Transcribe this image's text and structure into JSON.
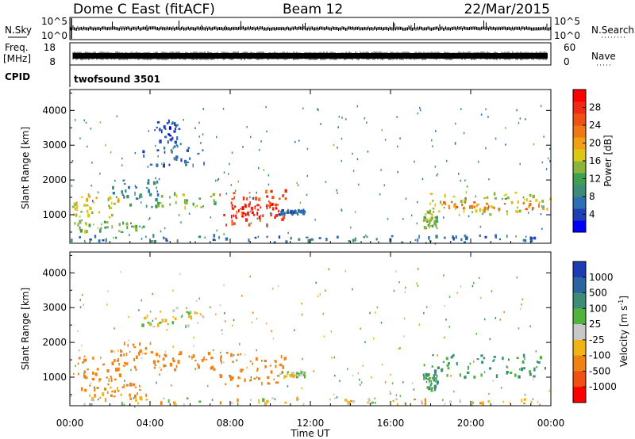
{
  "header": {
    "title": "Dome C East (fitACF)",
    "beam": "Beam 12",
    "date": "22/Mar/2015"
  },
  "top_panels": {
    "nsky_label": "N.Sky",
    "nsearch_label": "N.Search",
    "freq_label_line1": "Freq.",
    "freq_label_line2": "[MHz]",
    "nave_label": "Nave",
    "cpid_label": "CPID",
    "cpid_name": "twofsound 3501",
    "noise_left_ticks": [
      "10^5",
      "10^0"
    ],
    "noise_right_ticks": [
      "10^5",
      "10^0"
    ],
    "freq_ticks": [
      "18",
      "8"
    ],
    "nave_ticks": [
      "60",
      "0"
    ]
  },
  "colors": {
    "noise_trace": "#000000",
    "frame": "#000000"
  },
  "chart_data": [
    {
      "type": "heatmap",
      "quantity": "power",
      "xlabel": "",
      "ylabel": "Slant Range [km]",
      "x_ticks": [
        "00:00",
        "04:00",
        "08:00",
        "12:00",
        "16:00",
        "20:00",
        "00:00"
      ],
      "y_ticks": [
        1000,
        2000,
        3000,
        4000
      ],
      "ylim_km": [
        180,
        4600
      ],
      "xlim_hours": [
        0,
        24
      ],
      "colorbar": {
        "label": "Power [dB]",
        "tick_labels": [
          "28",
          "24",
          "20",
          "16",
          "12",
          "8",
          "4"
        ],
        "range": [
          0,
          32
        ],
        "colors": [
          "#0000ff",
          "#1e40b4",
          "#2d6eb4",
          "#3c8c78",
          "#3ca050",
          "#8cb43c",
          "#dcc814",
          "#f0a014",
          "#f07814",
          "#f05014",
          "#f02814",
          "#ff0000"
        ]
      },
      "regions": [
        {
          "t": [
            0.1,
            2.5
          ],
          "r": [
            900,
            1600
          ],
          "p": 17
        },
        {
          "t": [
            0.2,
            3.8
          ],
          "r": [
            500,
            800
          ],
          "p": 14
        },
        {
          "t": [
            2.0,
            4.4
          ],
          "r": [
            1200,
            2000
          ],
          "p": 9
        },
        {
          "t": [
            3.5,
            6.9
          ],
          "r": [
            2400,
            3000
          ],
          "p": 6
        },
        {
          "t": [
            4.2,
            5.5
          ],
          "r": [
            3000,
            3700
          ],
          "p": 5
        },
        {
          "t": [
            4.2,
            7.3
          ],
          "r": [
            1200,
            1600
          ],
          "p": 14
        },
        {
          "t": [
            7.4,
            10.8
          ],
          "r": [
            700,
            1700
          ],
          "p": 26
        },
        {
          "t": [
            8.0,
            10.4
          ],
          "r": [
            900,
            1300
          ],
          "p": 30
        },
        {
          "t": [
            10.4,
            11.7
          ],
          "r": [
            1000,
            1150
          ],
          "p": 6
        },
        {
          "t": [
            17.6,
            24.0
          ],
          "r": [
            1000,
            1650
          ],
          "p": 16
        },
        {
          "t": [
            18.5,
            23.9
          ],
          "r": [
            1150,
            1400
          ],
          "p": 23
        },
        {
          "t": [
            17.6,
            18.3
          ],
          "r": [
            600,
            1100
          ],
          "p": 14
        },
        {
          "t": [
            0.0,
            24.0
          ],
          "r": [
            200,
            400
          ],
          "p": 7
        }
      ]
    },
    {
      "type": "heatmap",
      "quantity": "velocity",
      "xlabel": "Time UT",
      "ylabel": "Slant Range [km]",
      "x_ticks": [
        "00:00",
        "04:00",
        "08:00",
        "12:00",
        "16:00",
        "20:00",
        "00:00"
      ],
      "y_ticks": [
        1000,
        2000,
        3000,
        4000
      ],
      "ylim_km": [
        180,
        4600
      ],
      "xlim_hours": [
        0,
        24
      ],
      "colorbar": {
        "label": "Velocity [m s",
        "label_exponent": "-1",
        "label_close": "]",
        "tick_labels": [
          "1000",
          "500",
          "100",
          "25",
          "-25",
          "-100",
          "-500",
          "-1000"
        ],
        "colors": [
          "#1c3cb4",
          "#2c64a0",
          "#3c8c78",
          "#50b43c",
          "#c8c8c8",
          "#f0b414",
          "#f08214",
          "#f05014",
          "#ff0000"
        ]
      },
      "regions": [
        {
          "t": [
            0.1,
            2.5
          ],
          "r": [
            900,
            1600
          ],
          "v": -300
        },
        {
          "t": [
            0.5,
            3.8
          ],
          "r": [
            400,
            800
          ],
          "v": -150
        },
        {
          "t": [
            2.0,
            4.4
          ],
          "r": [
            1200,
            2000
          ],
          "v": -200
        },
        {
          "t": [
            3.5,
            6.9
          ],
          "r": [
            2400,
            3000
          ],
          "v": 0
        },
        {
          "t": [
            4.2,
            7.3
          ],
          "r": [
            1200,
            1700
          ],
          "v": -300
        },
        {
          "t": [
            7.4,
            10.8
          ],
          "r": [
            700,
            1700
          ],
          "v": -400
        },
        {
          "t": [
            10.4,
            11.7
          ],
          "r": [
            1000,
            1150
          ],
          "v": 0
        },
        {
          "t": [
            17.6,
            24.0
          ],
          "r": [
            1000,
            1650
          ],
          "v": 150
        },
        {
          "t": [
            17.6,
            18.3
          ],
          "r": [
            600,
            1100
          ],
          "v": 120
        },
        {
          "t": [
            0.0,
            24.0
          ],
          "r": [
            200,
            400
          ],
          "v": -50
        }
      ]
    }
  ]
}
